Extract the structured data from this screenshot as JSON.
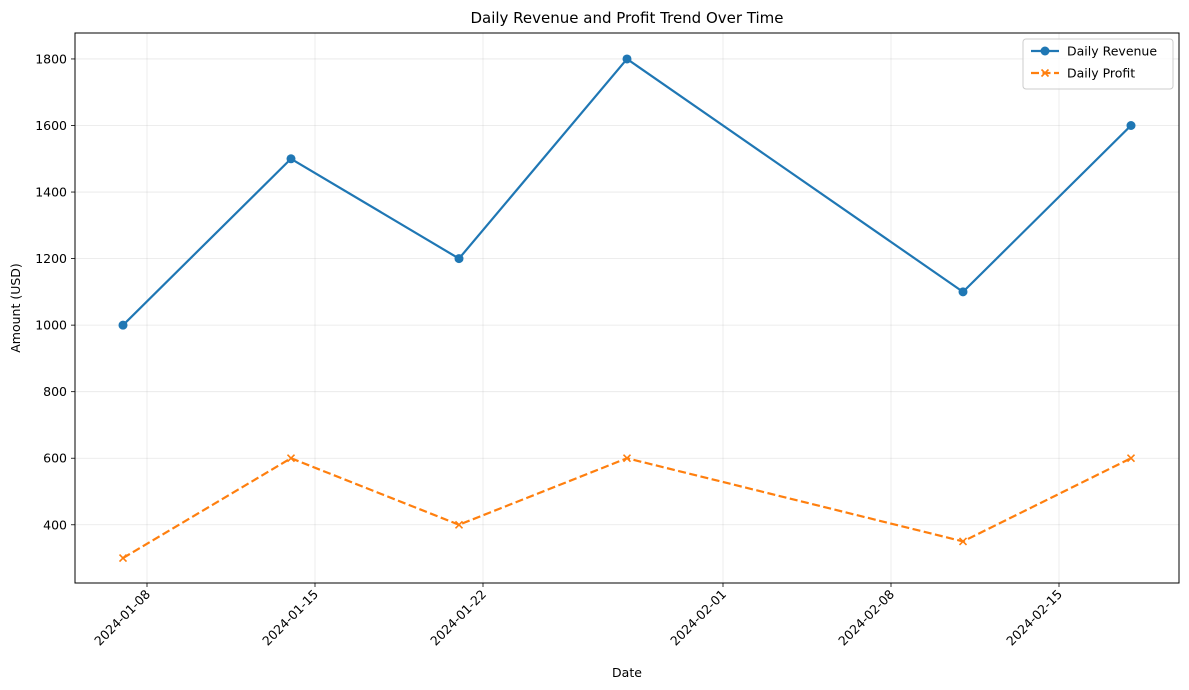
{
  "chart_data": {
    "type": "line",
    "title": "Daily Revenue and Profit Trend Over Time",
    "xlabel": "Date",
    "ylabel": "Amount (USD)",
    "x": [
      "2024-01-07",
      "2024-01-14",
      "2024-01-21",
      "2024-01-28",
      "2024-02-11",
      "2024-02-18"
    ],
    "series": [
      {
        "name": "Daily Revenue",
        "values": [
          1000,
          1500,
          1200,
          1800,
          1100,
          1600
        ],
        "color": "#1f77b4",
        "linestyle": "solid",
        "marker": "circle"
      },
      {
        "name": "Daily Profit",
        "values": [
          300,
          600,
          400,
          600,
          350,
          600
        ],
        "color": "#ff7f0e",
        "linestyle": "dashed",
        "marker": "x"
      }
    ],
    "xticks": [
      "2024-01-08",
      "2024-01-15",
      "2024-01-22",
      "2024-02-01",
      "2024-02-08",
      "2024-02-15"
    ],
    "yticks": [
      400,
      600,
      800,
      1000,
      1200,
      1400,
      1600,
      1800
    ],
    "xlim": [
      "2024-01-05",
      "2024-02-20"
    ],
    "ylim": [
      225,
      1878
    ],
    "grid": true,
    "legend_position": "top-right"
  }
}
